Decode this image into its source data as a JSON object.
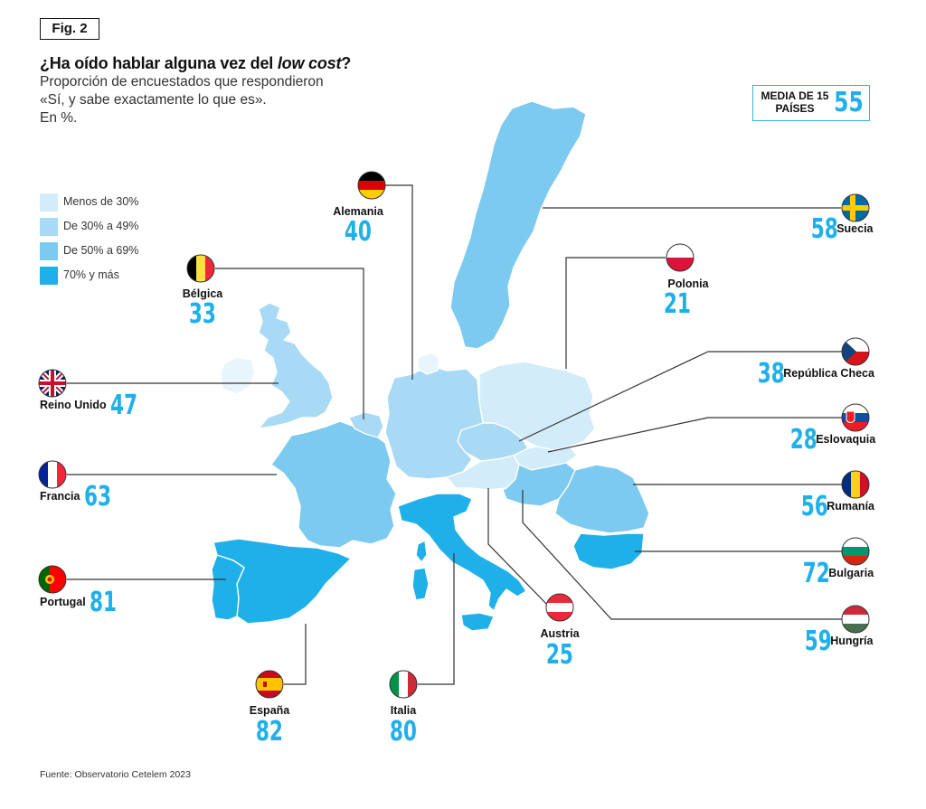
{
  "figure_label": "Fig. 2",
  "title_prefix": "¿Ha oído hablar alguna vez del ",
  "title_italic": "low cost",
  "title_suffix": "?",
  "subtitle_lines": [
    "Proporción de encuestados que respondieron",
    "«Sí, y sabe exactamente lo que es».",
    "En %."
  ],
  "average": {
    "label_line1": "MEDIA DE 15",
    "label_line2": "PAÍSES",
    "value": "55"
  },
  "legend": [
    {
      "label": "Menos de 30%",
      "color": "#d3ecfa"
    },
    {
      "label": "De 30% a 49%",
      "color": "#a8daf5"
    },
    {
      "label": "De 50% a 69%",
      "color": "#7dcaf0"
    },
    {
      "label": "70% y más",
      "color": "#1fb0ea"
    }
  ],
  "countries": [
    {
      "name": "Alemania",
      "value": "40"
    },
    {
      "name": "Bélgica",
      "value": "33"
    },
    {
      "name": "Reino Unido",
      "value": "47"
    },
    {
      "name": "Francia",
      "value": "63"
    },
    {
      "name": "Portugal",
      "value": "81"
    },
    {
      "name": "España",
      "value": "82"
    },
    {
      "name": "Italia",
      "value": "80"
    },
    {
      "name": "Austria",
      "value": "25"
    },
    {
      "name": "Suecia",
      "value": "58"
    },
    {
      "name": "Polonia",
      "value": "21"
    },
    {
      "name": "República Checa",
      "value": "38"
    },
    {
      "name": "Eslovaquia",
      "value": "28"
    },
    {
      "name": "Rumanía",
      "value": "56"
    },
    {
      "name": "Bulgaria",
      "value": "72"
    },
    {
      "name": "Hungría",
      "value": "59"
    }
  ],
  "source": "Fuente: Observatorio Cetelem 2023",
  "colors": {
    "accent": "#1fb0ea",
    "leader_line": "#333333"
  }
}
